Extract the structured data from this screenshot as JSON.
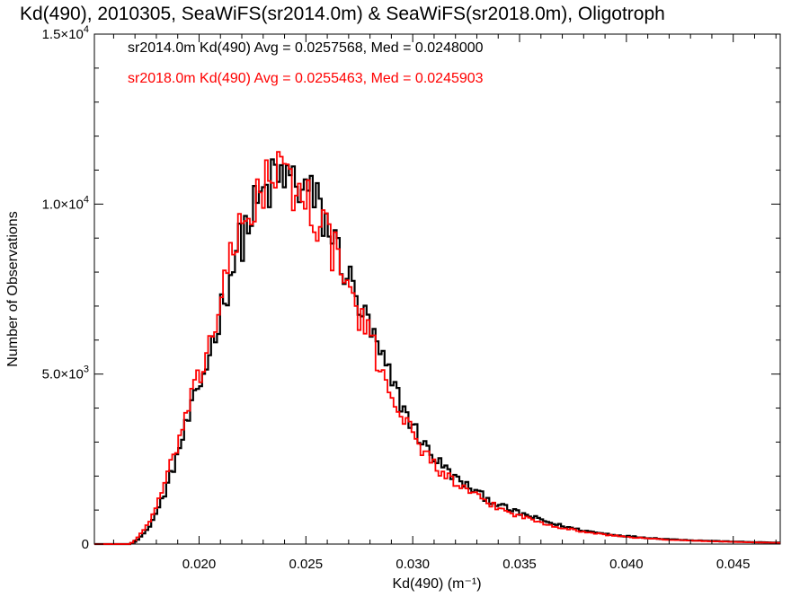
{
  "chart_data": {
    "type": "histogram",
    "title": "Kd(490), 2010305, SeaWiFS(sr2014.0m) & SeaWiFS(sr2018.0m), Oligotroph",
    "xlabel": "Kd(490) (m⁻¹)",
    "ylabel": "Number of Observations",
    "xlim": [
      0.0151,
      0.0472
    ],
    "ylim": [
      0,
      15000
    ],
    "x_ticks": [
      0.02,
      0.025,
      0.03,
      0.035,
      0.04,
      0.045
    ],
    "x_tick_labels": [
      "0.020",
      "0.025",
      "0.030",
      "0.035",
      "0.040",
      "0.045"
    ],
    "y_ticks": [
      0,
      5000,
      10000,
      15000
    ],
    "y_tick_labels": [
      {
        "text": "0",
        "exp": ""
      },
      {
        "text": "5.0×10",
        "exp": "3"
      },
      {
        "text": "1.0×10",
        "exp": "4"
      },
      {
        "text": "1.5×10",
        "exp": "4"
      }
    ],
    "grid": false,
    "series": [
      {
        "name": "sr2014.0m",
        "color": "#000000",
        "annotation": "sr2014.0m Kd(490) Avg = 0.0257568, Med = 0.0248000",
        "points": [
          [
            0.016,
            0
          ],
          [
            0.0167,
            0
          ],
          [
            0.017,
            100
          ],
          [
            0.0175,
            400
          ],
          [
            0.018,
            1000
          ],
          [
            0.0185,
            1800
          ],
          [
            0.019,
            2800
          ],
          [
            0.0195,
            3800
          ],
          [
            0.02,
            4700
          ],
          [
            0.0205,
            5800
          ],
          [
            0.021,
            7000
          ],
          [
            0.0215,
            8200
          ],
          [
            0.022,
            9100
          ],
          [
            0.0225,
            9800
          ],
          [
            0.023,
            10300
          ],
          [
            0.0235,
            10700
          ],
          [
            0.024,
            10800
          ],
          [
            0.0245,
            10600
          ],
          [
            0.025,
            10400
          ],
          [
            0.0255,
            9900
          ],
          [
            0.026,
            9300
          ],
          [
            0.0265,
            8500
          ],
          [
            0.027,
            7700
          ],
          [
            0.0275,
            6900
          ],
          [
            0.028,
            6200
          ],
          [
            0.0285,
            5400
          ],
          [
            0.029,
            4700
          ],
          [
            0.0295,
            4000
          ],
          [
            0.03,
            3400
          ],
          [
            0.0305,
            2900
          ],
          [
            0.031,
            2500
          ],
          [
            0.0315,
            2200
          ],
          [
            0.032,
            1900
          ],
          [
            0.0325,
            1700
          ],
          [
            0.033,
            1500
          ],
          [
            0.0335,
            1300
          ],
          [
            0.034,
            1150
          ],
          [
            0.0345,
            1000
          ],
          [
            0.035,
            900
          ],
          [
            0.0355,
            800
          ],
          [
            0.036,
            700
          ],
          [
            0.0365,
            600
          ],
          [
            0.037,
            520
          ],
          [
            0.0375,
            450
          ],
          [
            0.038,
            390
          ],
          [
            0.0385,
            340
          ],
          [
            0.039,
            300
          ],
          [
            0.0395,
            260
          ],
          [
            0.04,
            230
          ],
          [
            0.041,
            180
          ],
          [
            0.042,
            140
          ],
          [
            0.043,
            110
          ],
          [
            0.044,
            90
          ],
          [
            0.045,
            70
          ],
          [
            0.046,
            55
          ],
          [
            0.0472,
            40
          ]
        ]
      },
      {
        "name": "sr2018.0m",
        "color": "#ff0000",
        "annotation": "sr2018.0m Kd(490) Avg = 0.0255463, Med = 0.0245903",
        "points": [
          [
            0.016,
            0
          ],
          [
            0.0167,
            0
          ],
          [
            0.017,
            150
          ],
          [
            0.0175,
            550
          ],
          [
            0.018,
            1200
          ],
          [
            0.0185,
            2100
          ],
          [
            0.019,
            3100
          ],
          [
            0.0195,
            4100
          ],
          [
            0.02,
            5000
          ],
          [
            0.0205,
            6100
          ],
          [
            0.021,
            7300
          ],
          [
            0.0215,
            8500
          ],
          [
            0.022,
            9400
          ],
          [
            0.0225,
            10100
          ],
          [
            0.023,
            10600
          ],
          [
            0.0235,
            10900
          ],
          [
            0.024,
            10700
          ],
          [
            0.0245,
            10400
          ],
          [
            0.025,
            10100
          ],
          [
            0.0255,
            9600
          ],
          [
            0.026,
            9000
          ],
          [
            0.0265,
            8200
          ],
          [
            0.027,
            7400
          ],
          [
            0.0275,
            6600
          ],
          [
            0.028,
            5900
          ],
          [
            0.0285,
            5100
          ],
          [
            0.029,
            4400
          ],
          [
            0.0295,
            3700
          ],
          [
            0.03,
            3150
          ],
          [
            0.0305,
            2700
          ],
          [
            0.031,
            2300
          ],
          [
            0.0315,
            2000
          ],
          [
            0.032,
            1750
          ],
          [
            0.0325,
            1550
          ],
          [
            0.033,
            1370
          ],
          [
            0.0335,
            1200
          ],
          [
            0.034,
            1050
          ],
          [
            0.0345,
            920
          ],
          [
            0.035,
            820
          ],
          [
            0.0355,
            720
          ],
          [
            0.036,
            630
          ],
          [
            0.0365,
            550
          ],
          [
            0.037,
            470
          ],
          [
            0.0375,
            410
          ],
          [
            0.038,
            360
          ],
          [
            0.0385,
            310
          ],
          [
            0.039,
            270
          ],
          [
            0.0395,
            240
          ],
          [
            0.04,
            210
          ],
          [
            0.041,
            160
          ],
          [
            0.042,
            125
          ],
          [
            0.043,
            100
          ],
          [
            0.044,
            80
          ],
          [
            0.045,
            62
          ],
          [
            0.046,
            48
          ],
          [
            0.0472,
            35
          ]
        ]
      }
    ]
  }
}
